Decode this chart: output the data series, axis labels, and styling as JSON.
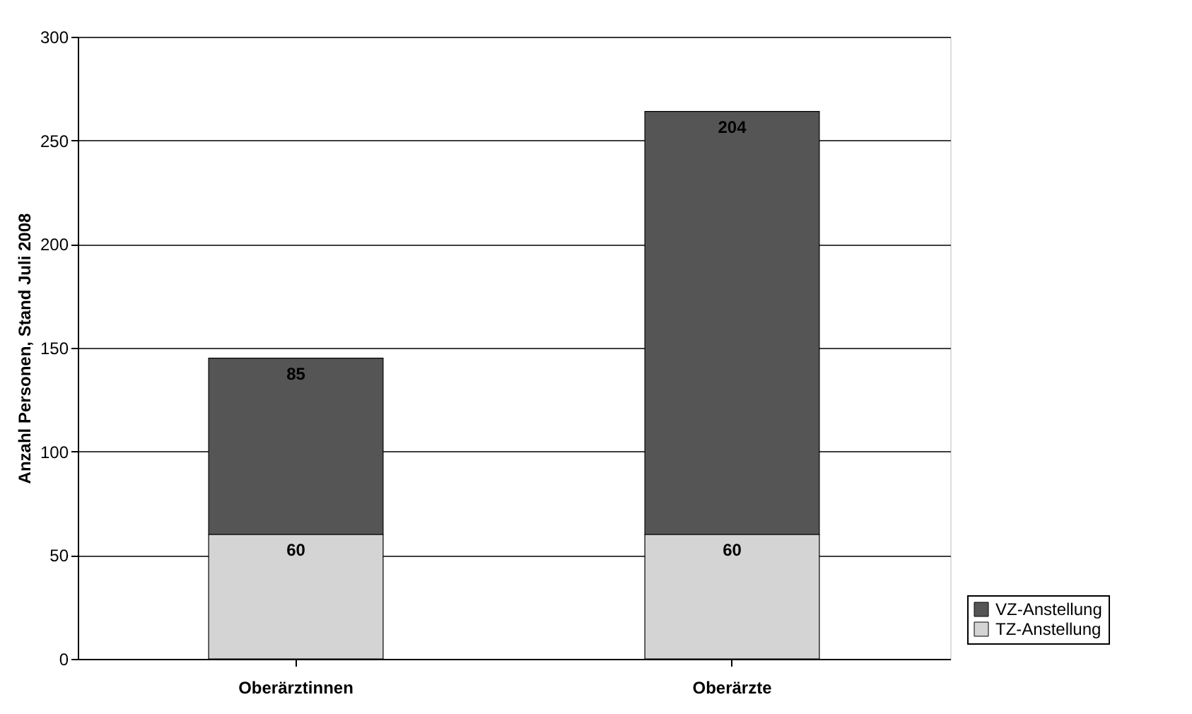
{
  "chart_data": {
    "type": "bar",
    "stacked": true,
    "ylabel": "Anzahl Personen, Stand Juli 2008",
    "categories": [
      "Oberärztinnen",
      "Oberärzte"
    ],
    "series": [
      {
        "name": "TZ-Anstellung",
        "color": "#d4d4d4",
        "values": [
          60,
          60
        ]
      },
      {
        "name": "VZ-Anstellung",
        "color": "#555555",
        "values": [
          85,
          204
        ]
      }
    ],
    "ylim": [
      0,
      300
    ],
    "yticks": [
      0,
      50,
      100,
      150,
      200,
      250,
      300
    ],
    "grid": "y",
    "legend": "bottom right",
    "data_labels": true
  }
}
